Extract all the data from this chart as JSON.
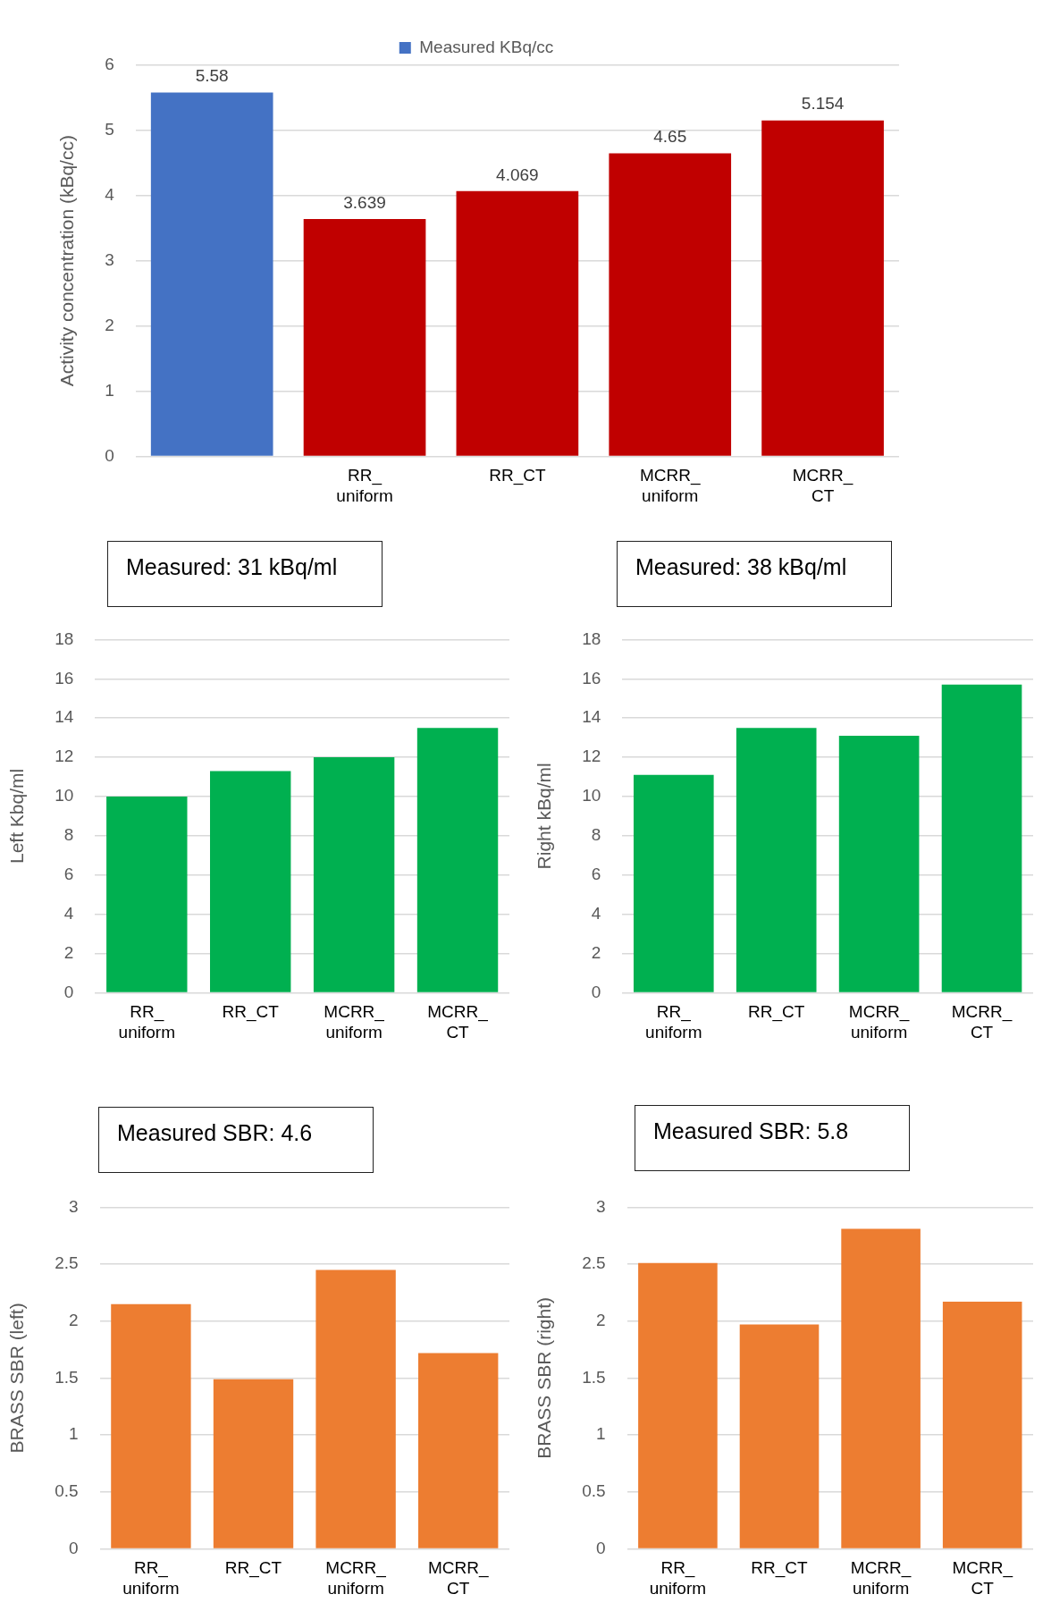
{
  "chart_data": [
    {
      "type": "bar",
      "categories": [
        null,
        "RR_uniform",
        "RR_CT",
        "MCRR_uniform",
        "MCRR_CT"
      ],
      "ylabel": "Activity concentration (kBq/cc)",
      "ylim": [
        0,
        6
      ],
      "yticks": [
        0,
        1,
        2,
        3,
        4,
        5,
        6
      ],
      "grid": "y",
      "legend": "top",
      "data_labels": true,
      "series": [
        {
          "name": "Measured KBq/cc",
          "color": "#4472c4",
          "values": [
            5.58,
            null,
            null,
            null,
            null
          ]
        },
        {
          "color": "#c00000",
          "values": [
            null,
            3.639,
            4.069,
            4.65,
            5.154
          ]
        }
      ]
    },
    {
      "type": "bar",
      "title": "Measured: 31 kBq/ml",
      "categories": [
        "RR_uniform",
        "RR_CT",
        "MCRR_uniform",
        "MCRR_CT"
      ],
      "ylabel": "Left Kbq/ml",
      "ylim": [
        0,
        18
      ],
      "yticks": [
        0,
        2,
        4,
        6,
        8,
        10,
        12,
        14,
        16,
        18
      ],
      "grid": "y",
      "series": [
        {
          "color": "#00b050",
          "values": [
            10.0,
            11.3,
            12.0,
            13.5
          ]
        }
      ]
    },
    {
      "type": "bar",
      "title": "Measured: 38 kBq/ml",
      "categories": [
        "RR_uniform",
        "RR_CT",
        "MCRR_uniform",
        "MCRR_CT"
      ],
      "ylabel": "Right kBq/ml",
      "ylim": [
        0,
        18
      ],
      "yticks": [
        0,
        2,
        4,
        6,
        8,
        10,
        12,
        14,
        16,
        18
      ],
      "grid": "y",
      "series": [
        {
          "color": "#00b050",
          "values": [
            11.1,
            13.5,
            13.1,
            15.7
          ]
        }
      ]
    },
    {
      "type": "bar",
      "title": "Measured SBR: 4.6",
      "categories": [
        "RR_uniform",
        "RR_CT",
        "MCRR_uniform",
        "MCRR_CT"
      ],
      "ylabel": "BRASS SBR (left)",
      "ylim": [
        0,
        3
      ],
      "yticks": [
        0,
        0.5,
        1,
        1.5,
        2,
        2.5,
        3
      ],
      "grid": "y",
      "series": [
        {
          "color": "#ed7d31",
          "values": [
            2.15,
            1.49,
            2.45,
            1.72
          ]
        }
      ]
    },
    {
      "type": "bar",
      "title": "Measured SBR: 5.8",
      "categories": [
        "RR_uniform",
        "RR_CT",
        "MCRR_uniform",
        "MCRR_CT"
      ],
      "ylabel": "BRASS SBR (right)",
      "ylim": [
        0,
        3
      ],
      "yticks": [
        0,
        0.5,
        1,
        1.5,
        2,
        2.5,
        3
      ],
      "grid": "y",
      "series": [
        {
          "color": "#ed7d31",
          "values": [
            2.51,
            1.97,
            2.81,
            2.17
          ]
        }
      ]
    }
  ]
}
